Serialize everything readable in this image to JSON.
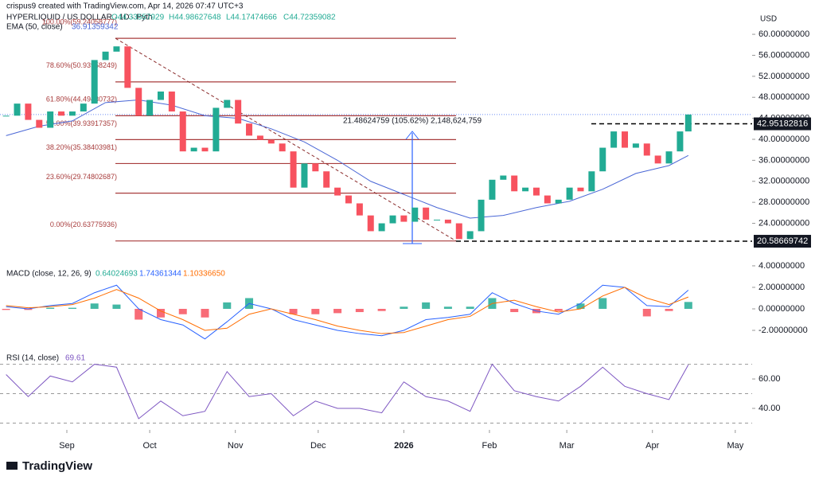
{
  "header": {
    "credit": "crispus9 created with TradingView.com, Apr 14, 2026 07:47 UTC+3",
    "currency": "USD",
    "brand": "TradingView"
  },
  "chart_data": [
    {
      "type": "candlestick",
      "title": "HYPERLIQUID / US DOLLAR · 1D · Pyth",
      "ohlc": [
        "O44.33557929",
        "H44.98627648",
        "L44.17474666",
        "C44.72359082"
      ],
      "up_color": "#22ab94",
      "down_color": "#f7525f",
      "x": [
        -22,
        -18,
        -14,
        -10,
        -6,
        -2,
        2,
        6,
        10,
        14,
        18,
        22,
        26,
        30,
        34,
        38,
        42,
        46,
        50,
        54,
        58,
        62,
        66,
        70,
        74,
        78,
        82,
        86,
        90,
        94,
        98,
        102,
        106,
        110,
        114,
        118,
        122,
        126,
        130,
        134,
        138,
        142,
        146,
        150,
        154,
        158,
        162,
        166,
        170,
        174,
        178,
        182,
        186,
        190,
        194,
        198,
        202,
        206,
        210,
        214,
        218,
        222,
        225
      ],
      "values": [
        44.5,
        46.8,
        43.7,
        42.2,
        45.3,
        44.5,
        45.3,
        46.8,
        55.1,
        56.7,
        57.7,
        49.8,
        44.5,
        47.5,
        49.1,
        45.3,
        37.7,
        38.4,
        37.7,
        46.0,
        47.5,
        43.0,
        40.7,
        39.9,
        39.2,
        37.7,
        30.8,
        35.4,
        33.9,
        30.8,
        29.3,
        27.8,
        25.5,
        22.5,
        24.0,
        25.5,
        24.3,
        27.0,
        24.7,
        24.7,
        24.0,
        21.0,
        22.5,
        28.5,
        32.3,
        33.1,
        30.1,
        30.8,
        29.3,
        27.8,
        28.5,
        30.8,
        30.1,
        33.9,
        38.4,
        41.5,
        38.4,
        39.2,
        36.9,
        35.4,
        37.7,
        41.5,
        44.72359082
      ],
      "ema": {
        "label": "EMA (50, close)",
        "value_label": "36.91359342",
        "color": "#4a67d6",
        "x": [
          -22,
          -10,
          2,
          14,
          26,
          38,
          50,
          62,
          74,
          86,
          98,
          110,
          122,
          134,
          146,
          158,
          170,
          182,
          194,
          206,
          218,
          225
        ],
        "values": [
          40.7,
          42.5,
          43.5,
          47,
          47.5,
          46.5,
          44.5,
          44,
          42,
          39.5,
          36,
          32,
          29.5,
          27,
          25,
          25.5,
          27,
          28.2,
          30.5,
          33.5,
          35,
          36.91359342
        ]
      },
      "fib_color": "#a83c3c",
      "fib_levels": [
        {
          "value": 59.24058777,
          "label": "100.00%(59.24058777)"
        },
        {
          "value": 50.93958249,
          "label": "78.60%(50.93958249)"
        },
        {
          "value": 44.49430732,
          "label": "61.80%(44.49430732)"
        },
        {
          "value": 39.93917357,
          "label": "50.00%(39.93917357)"
        },
        {
          "value": 35.38403981,
          "label": "38.20%(35.38403981)"
        },
        {
          "value": 29.74802687,
          "label": "23.60%(29.74802687)"
        },
        {
          "value": 20.63775936,
          "label": "0.00%(20.63775936)"
        }
      ],
      "measure_label": "21.48624759 (105.62%) 2,148,624,759",
      "price_lines": [
        42.95182816,
        20.58669742
      ],
      "ylim": [
        16.5,
        63.5
      ],
      "yticks": [
        {
          "value": 60,
          "label": "60.00000000"
        },
        {
          "value": 56,
          "label": "56.00000000"
        },
        {
          "value": 52,
          "label": "52.00000000"
        },
        {
          "value": 48,
          "label": "48.00000000"
        },
        {
          "value": 44,
          "label": "44.00000000"
        },
        {
          "value": 40,
          "label": "40.00000000"
        },
        {
          "value": 36,
          "label": "36.00000000"
        },
        {
          "value": 32,
          "label": "32.00000000"
        },
        {
          "value": 28,
          "label": "28.00000000"
        },
        {
          "value": 24,
          "label": "24.00000000"
        }
      ],
      "xlim": [
        -24.2,
        248.1
      ]
    },
    {
      "type": "macd",
      "title": "MACD (close, 12, 26, 9)",
      "x": [
        -22,
        -14,
        -6,
        2,
        10,
        18,
        26,
        34,
        42,
        50,
        58,
        66,
        74,
        82,
        90,
        98,
        106,
        114,
        122,
        130,
        138,
        146,
        154,
        162,
        170,
        178,
        186,
        194,
        202,
        210,
        218,
        225
      ],
      "macd": {
        "color": "#2962ff",
        "value_label": "1.74361344",
        "values": [
          0.2,
          0,
          0.3,
          0.5,
          1.5,
          2.2,
          0,
          -1,
          -1.5,
          -2.8,
          -1.2,
          0.5,
          0,
          -1,
          -1.5,
          -2,
          -2.3,
          -2.5,
          -2,
          -1,
          -0.8,
          -0.5,
          1.5,
          0.5,
          -0.2,
          -0.5,
          0.5,
          2.2,
          2,
          0.3,
          0.2,
          1.74
        ]
      },
      "signal": {
        "color": "#ff6d00",
        "value_label": "1.10336650",
        "values": [
          0.3,
          0.1,
          0.2,
          0.4,
          1,
          1.8,
          1,
          -0.2,
          -1,
          -2,
          -1.8,
          -0.5,
          0,
          -0.5,
          -1,
          -1.6,
          -2,
          -2.3,
          -2.2,
          -1.6,
          -1,
          -0.7,
          0.5,
          0.8,
          0.2,
          -0.3,
          0,
          1.2,
          2,
          1,
          0.4,
          1.1
        ]
      },
      "histogram": {
        "up_color": "#22ab94",
        "down_color": "#f7525f",
        "value_label": "0.64024693",
        "values": [
          -0.1,
          -0.1,
          0.1,
          0.1,
          0.5,
          0.4,
          -1,
          -0.8,
          -0.5,
          -0.8,
          0.6,
          1,
          0,
          -0.5,
          -0.5,
          -0.4,
          -0.3,
          -0.2,
          0.2,
          0.6,
          0.2,
          0.2,
          1,
          -0.3,
          -0.4,
          -0.2,
          0.5,
          1,
          0,
          -0.7,
          -0.2,
          0.64
        ]
      },
      "ylim": [
        -3.85,
        4.07
      ],
      "yticks": [
        {
          "value": 4,
          "label": "4.00000000"
        },
        {
          "value": 2,
          "label": "2.00000000"
        },
        {
          "value": 0,
          "label": "0.00000000"
        },
        {
          "value": -2,
          "label": "-2.00000000"
        }
      ],
      "xlim": [
        -24.2,
        248.1
      ]
    },
    {
      "type": "line",
      "title": "RSI (14, close)",
      "value_label": "69.61",
      "color": "#7e57c2",
      "x": [
        -22,
        -14,
        -6,
        2,
        10,
        18,
        26,
        34,
        42,
        50,
        58,
        66,
        74,
        82,
        90,
        98,
        106,
        114,
        122,
        130,
        138,
        146,
        154,
        162,
        170,
        178,
        186,
        194,
        202,
        210,
        218,
        225
      ],
      "values": [
        63,
        48,
        62,
        58,
        70,
        68,
        33,
        45,
        35,
        38,
        65,
        48,
        50,
        35,
        45,
        40,
        40,
        37,
        58,
        48,
        45,
        38,
        70,
        52,
        48,
        45,
        55,
        68,
        55,
        50,
        46,
        69.61
      ],
      "levels": [
        70,
        50,
        30
      ],
      "ylim": [
        25.4,
        76.8
      ],
      "yticks": [
        {
          "value": 60,
          "label": "60.00"
        },
        {
          "value": 40,
          "label": "40.00"
        }
      ],
      "xlim": [
        -24.2,
        248.1
      ],
      "xticks": [
        {
          "value": 0,
          "label": "Sep"
        },
        {
          "value": 30,
          "label": "Oct"
        },
        {
          "value": 61,
          "label": "Nov"
        },
        {
          "value": 91,
          "label": "Dec"
        },
        {
          "value": 122,
          "label": "2026"
        },
        {
          "value": 153,
          "label": "Feb"
        },
        {
          "value": 181,
          "label": "Mar"
        },
        {
          "value": 212,
          "label": "Apr"
        },
        {
          "value": 242,
          "label": "May"
        }
      ]
    }
  ]
}
